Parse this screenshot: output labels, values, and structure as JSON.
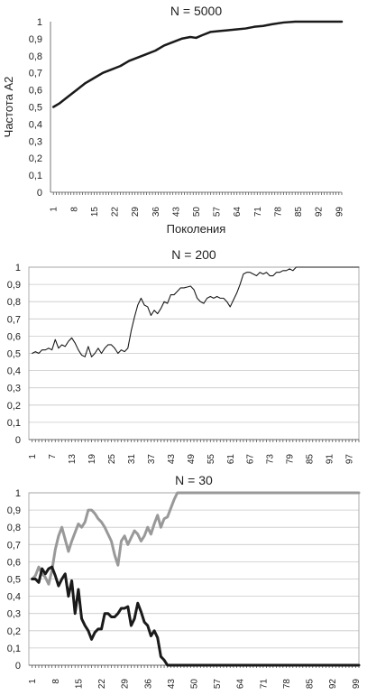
{
  "chart_data": [
    {
      "type": "line",
      "title": "N = 5000",
      "xlabel": "Поколения",
      "ylabel": "Частота A2",
      "ylim": [
        0,
        1
      ],
      "yticks": [
        "0",
        "0,1",
        "0,2",
        "0,3",
        "0,4",
        "0,5",
        "0,6",
        "0,7",
        "0,8",
        "0,9",
        "1"
      ],
      "xticks": [
        "1",
        "8",
        "15",
        "22",
        "29",
        "36",
        "43",
        "50",
        "57",
        "64",
        "71",
        "78",
        "85",
        "92",
        "99"
      ],
      "x_max": 100,
      "grid": false,
      "series": [
        {
          "color": "#1a1a1a",
          "width": 2.5,
          "points": [
            [
              1,
              0.5
            ],
            [
              3,
              0.52
            ],
            [
              6,
              0.56
            ],
            [
              9,
              0.6
            ],
            [
              12,
              0.64
            ],
            [
              15,
              0.67
            ],
            [
              18,
              0.7
            ],
            [
              21,
              0.72
            ],
            [
              24,
              0.74
            ],
            [
              27,
              0.77
            ],
            [
              30,
              0.79
            ],
            [
              33,
              0.81
            ],
            [
              36,
              0.83
            ],
            [
              39,
              0.86
            ],
            [
              42,
              0.88
            ],
            [
              45,
              0.9
            ],
            [
              48,
              0.91
            ],
            [
              50,
              0.905
            ],
            [
              52,
              0.92
            ],
            [
              55,
              0.94
            ],
            [
              58,
              0.945
            ],
            [
              61,
              0.95
            ],
            [
              64,
              0.955
            ],
            [
              67,
              0.96
            ],
            [
              70,
              0.97
            ],
            [
              73,
              0.975
            ],
            [
              76,
              0.985
            ],
            [
              80,
              0.995
            ],
            [
              84,
              1
            ],
            [
              100,
              1
            ]
          ]
        }
      ]
    },
    {
      "type": "line",
      "title": "N = 200",
      "xlabel": "",
      "ylabel": "",
      "ylim": [
        0,
        1
      ],
      "yticks": [
        "0",
        "0,1",
        "0,2",
        "0,3",
        "0,4",
        "0,5",
        "0,6",
        "0,7",
        "0,8",
        "0,9",
        "1"
      ],
      "xticks": [
        "1",
        "7",
        "13",
        "19",
        "25",
        "31",
        "37",
        "43",
        "49",
        "55",
        "61",
        "67",
        "73",
        "79",
        "85",
        "91",
        "97"
      ],
      "x_max": 100,
      "grid": true,
      "series": [
        {
          "color": "#1a1a1a",
          "width": 1.1,
          "points": [
            [
              1,
              0.5
            ],
            [
              2,
              0.51
            ],
            [
              3,
              0.5
            ],
            [
              4,
              0.52
            ],
            [
              5,
              0.52
            ],
            [
              6,
              0.53
            ],
            [
              7,
              0.52
            ],
            [
              8,
              0.58
            ],
            [
              9,
              0.53
            ],
            [
              10,
              0.55
            ],
            [
              11,
              0.54
            ],
            [
              12,
              0.57
            ],
            [
              13,
              0.59
            ],
            [
              14,
              0.56
            ],
            [
              15,
              0.52
            ],
            [
              16,
              0.49
            ],
            [
              17,
              0.48
            ],
            [
              18,
              0.54
            ],
            [
              19,
              0.48
            ],
            [
              20,
              0.5
            ],
            [
              21,
              0.53
            ],
            [
              22,
              0.5
            ],
            [
              23,
              0.53
            ],
            [
              24,
              0.55
            ],
            [
              25,
              0.55
            ],
            [
              26,
              0.53
            ],
            [
              27,
              0.5
            ],
            [
              28,
              0.52
            ],
            [
              29,
              0.51
            ],
            [
              30,
              0.53
            ],
            [
              31,
              0.63
            ],
            [
              32,
              0.71
            ],
            [
              33,
              0.78
            ],
            [
              34,
              0.82
            ],
            [
              35,
              0.78
            ],
            [
              36,
              0.77
            ],
            [
              37,
              0.72
            ],
            [
              38,
              0.75
            ],
            [
              39,
              0.73
            ],
            [
              40,
              0.76
            ],
            [
              41,
              0.8
            ],
            [
              42,
              0.79
            ],
            [
              43,
              0.84
            ],
            [
              44,
              0.84
            ],
            [
              45,
              0.86
            ],
            [
              46,
              0.88
            ],
            [
              47,
              0.88
            ],
            [
              48,
              0.885
            ],
            [
              49,
              0.89
            ],
            [
              50,
              0.87
            ],
            [
              51,
              0.82
            ],
            [
              52,
              0.8
            ],
            [
              53,
              0.79
            ],
            [
              54,
              0.82
            ],
            [
              55,
              0.83
            ],
            [
              56,
              0.82
            ],
            [
              57,
              0.83
            ],
            [
              58,
              0.82
            ],
            [
              59,
              0.82
            ],
            [
              60,
              0.8
            ],
            [
              61,
              0.77
            ],
            [
              62,
              0.81
            ],
            [
              63,
              0.85
            ],
            [
              64,
              0.9
            ],
            [
              65,
              0.96
            ],
            [
              66,
              0.97
            ],
            [
              67,
              0.97
            ],
            [
              68,
              0.96
            ],
            [
              69,
              0.95
            ],
            [
              70,
              0.97
            ],
            [
              71,
              0.96
            ],
            [
              72,
              0.97
            ],
            [
              73,
              0.95
            ],
            [
              74,
              0.95
            ],
            [
              75,
              0.97
            ],
            [
              76,
              0.97
            ],
            [
              77,
              0.98
            ],
            [
              78,
              0.98
            ],
            [
              79,
              0.99
            ],
            [
              80,
              0.98
            ],
            [
              81,
              1
            ],
            [
              82,
              1
            ],
            [
              100,
              1
            ]
          ]
        }
      ]
    },
    {
      "type": "line",
      "title": "N = 30",
      "xlabel": "",
      "ylabel": "",
      "ylim": [
        0,
        1
      ],
      "yticks": [
        "0",
        "0,1",
        "0,2",
        "0,3",
        "0,4",
        "0,5",
        "0,6",
        "0,7",
        "0,8",
        "0,9",
        "1"
      ],
      "xticks": [
        "1",
        "8",
        "15",
        "22",
        "29",
        "36",
        "43",
        "50",
        "57",
        "64",
        "71",
        "78",
        "85",
        "92",
        "99"
      ],
      "x_max": 100,
      "grid": true,
      "series": [
        {
          "color": "#999999",
          "width": 3,
          "points": [
            [
              1,
              0.5
            ],
            [
              2,
              0.52
            ],
            [
              3,
              0.57
            ],
            [
              4,
              0.53
            ],
            [
              5,
              0.51
            ],
            [
              6,
              0.47
            ],
            [
              7,
              0.55
            ],
            [
              8,
              0.67
            ],
            [
              9,
              0.75
            ],
            [
              10,
              0.8
            ],
            [
              11,
              0.73
            ],
            [
              12,
              0.66
            ],
            [
              13,
              0.72
            ],
            [
              14,
              0.77
            ],
            [
              15,
              0.82
            ],
            [
              16,
              0.8
            ],
            [
              17,
              0.83
            ],
            [
              18,
              0.9
            ],
            [
              19,
              0.9
            ],
            [
              20,
              0.88
            ],
            [
              21,
              0.85
            ],
            [
              22,
              0.83
            ],
            [
              23,
              0.8
            ],
            [
              24,
              0.76
            ],
            [
              25,
              0.72
            ],
            [
              26,
              0.64
            ],
            [
              27,
              0.58
            ],
            [
              28,
              0.72
            ],
            [
              29,
              0.75
            ],
            [
              30,
              0.7
            ],
            [
              31,
              0.74
            ],
            [
              32,
              0.78
            ],
            [
              33,
              0.76
            ],
            [
              34,
              0.72
            ],
            [
              35,
              0.75
            ],
            [
              36,
              0.8
            ],
            [
              37,
              0.76
            ],
            [
              38,
              0.82
            ],
            [
              39,
              0.87
            ],
            [
              40,
              0.8
            ],
            [
              41,
              0.85
            ],
            [
              42,
              0.86
            ],
            [
              43,
              0.91
            ],
            [
              44,
              0.96
            ],
            [
              45,
              1
            ],
            [
              100,
              1
            ]
          ]
        },
        {
          "color": "#1a1a1a",
          "width": 3,
          "points": [
            [
              1,
              0.5
            ],
            [
              2,
              0.5
            ],
            [
              3,
              0.48
            ],
            [
              4,
              0.56
            ],
            [
              5,
              0.53
            ],
            [
              6,
              0.56
            ],
            [
              7,
              0.57
            ],
            [
              8,
              0.52
            ],
            [
              9,
              0.46
            ],
            [
              10,
              0.5
            ],
            [
              11,
              0.53
            ],
            [
              12,
              0.4
            ],
            [
              13,
              0.49
            ],
            [
              14,
              0.3
            ],
            [
              15,
              0.44
            ],
            [
              16,
              0.27
            ],
            [
              17,
              0.23
            ],
            [
              18,
              0.2
            ],
            [
              19,
              0.15
            ],
            [
              20,
              0.19
            ],
            [
              21,
              0.21
            ],
            [
              22,
              0.21
            ],
            [
              23,
              0.3
            ],
            [
              24,
              0.3
            ],
            [
              25,
              0.28
            ],
            [
              26,
              0.28
            ],
            [
              27,
              0.3
            ],
            [
              28,
              0.33
            ],
            [
              29,
              0.33
            ],
            [
              30,
              0.34
            ],
            [
              31,
              0.23
            ],
            [
              32,
              0.27
            ],
            [
              33,
              0.36
            ],
            [
              34,
              0.31
            ],
            [
              35,
              0.25
            ],
            [
              36,
              0.23
            ],
            [
              37,
              0.17
            ],
            [
              38,
              0.2
            ],
            [
              39,
              0.16
            ],
            [
              40,
              0.05
            ],
            [
              41,
              0.03
            ],
            [
              42,
              0
            ],
            [
              100,
              0
            ]
          ]
        }
      ]
    }
  ]
}
